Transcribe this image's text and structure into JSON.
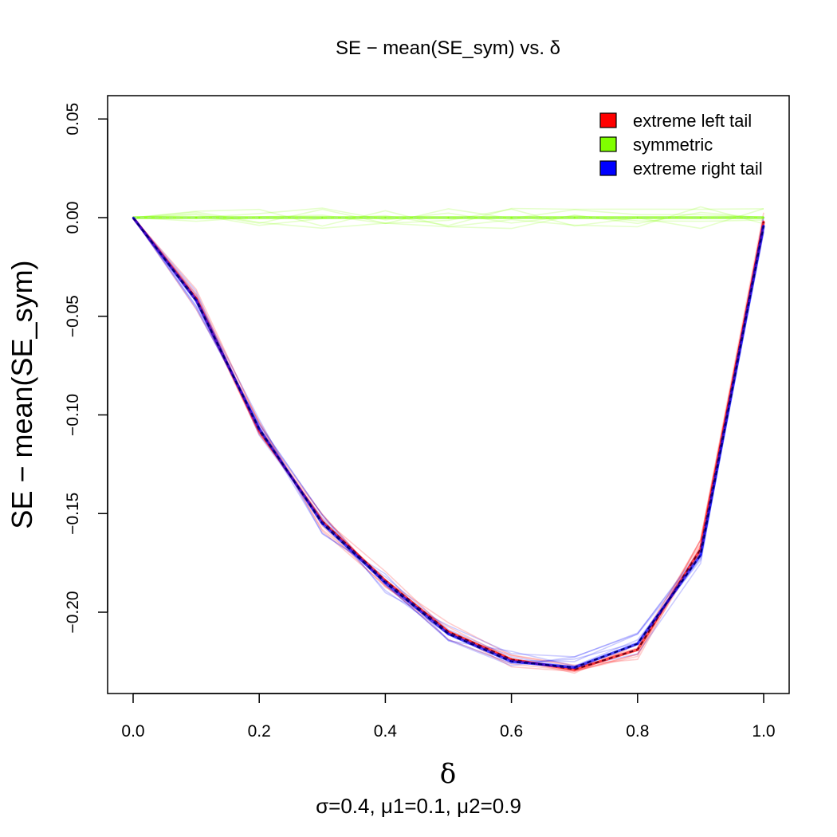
{
  "chart_data": {
    "type": "line",
    "title": "SE − mean(SE_sym) vs. δ",
    "xlabel": "δ",
    "ylabel": "SE − mean(SE_sym)",
    "subtitle": "σ=0.4, μ1=0.1, μ2=0.9",
    "xlim": [
      0.0,
      1.0
    ],
    "ylim": [
      -0.24,
      0.06
    ],
    "x_ticks": [
      "0.0",
      "0.2",
      "0.4",
      "0.6",
      "0.8",
      "1.0"
    ],
    "y_ticks": [
      "−0.20",
      "−0.15",
      "−0.10",
      "−0.05",
      "0.00",
      "0.05"
    ],
    "grid": false,
    "legend_position": "top-right",
    "x": [
      0.0,
      0.1,
      0.2,
      0.3,
      0.4,
      0.5,
      0.6,
      0.7,
      0.8,
      0.9,
      1.0
    ],
    "series": [
      {
        "name": "extreme left tail",
        "color": "#ff0000",
        "values": [
          0.0,
          -0.041,
          -0.108,
          -0.154,
          -0.184,
          -0.21,
          -0.224,
          -0.229,
          -0.219,
          -0.168,
          -0.002
        ]
      },
      {
        "name": "symmetric",
        "color": "#80ff00",
        "values": [
          0.0,
          0.0,
          0.0,
          0.0,
          0.0,
          0.0,
          0.0,
          0.0,
          0.0,
          0.0,
          0.0
        ]
      },
      {
        "name": "extreme right tail",
        "color": "#0000ff",
        "values": [
          0.0,
          -0.042,
          -0.107,
          -0.155,
          -0.185,
          -0.211,
          -0.225,
          -0.228,
          -0.216,
          -0.171,
          -0.004
        ]
      }
    ]
  }
}
